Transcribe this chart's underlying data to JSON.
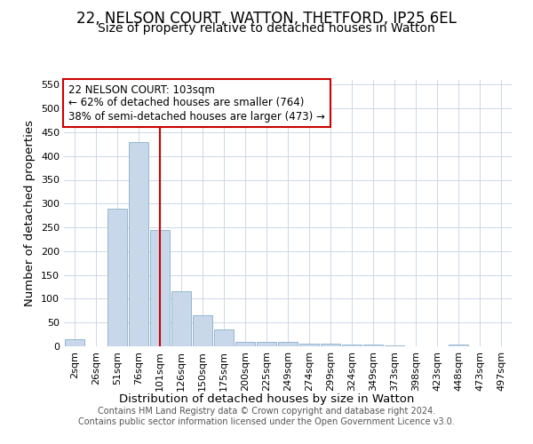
{
  "title": "22, NELSON COURT, WATTON, THETFORD, IP25 6EL",
  "subtitle": "Size of property relative to detached houses in Watton",
  "xlabel": "Distribution of detached houses by size in Watton",
  "ylabel": "Number of detached properties",
  "footer_line1": "Contains HM Land Registry data © Crown copyright and database right 2024.",
  "footer_line2": "Contains public sector information licensed under the Open Government Licence v3.0.",
  "bar_labels": [
    "2sqm",
    "26sqm",
    "51sqm",
    "76sqm",
    "101sqm",
    "126sqm",
    "150sqm",
    "175sqm",
    "200sqm",
    "225sqm",
    "249sqm",
    "274sqm",
    "299sqm",
    "324sqm",
    "349sqm",
    "373sqm",
    "398sqm",
    "423sqm",
    "448sqm",
    "473sqm",
    "497sqm"
  ],
  "bar_values": [
    15,
    0,
    290,
    430,
    245,
    115,
    65,
    35,
    10,
    10,
    10,
    5,
    5,
    3,
    3,
    2,
    0,
    0,
    3,
    0,
    0
  ],
  "bar_color": "#c8d8ea",
  "bar_edge_color": "#8aafc8",
  "vline_pos": 4.5,
  "vline_color": "#cc0000",
  "annotation_text": "22 NELSON COURT: 103sqm\n← 62% of detached houses are smaller (764)\n38% of semi-detached houses are larger (473) →",
  "annotation_box_color": "#ffffff",
  "annotation_box_edge": "#cc0000",
  "ylim": [
    0,
    560
  ],
  "yticks": [
    0,
    50,
    100,
    150,
    200,
    250,
    300,
    350,
    400,
    450,
    500,
    550
  ],
  "title_fontsize": 12,
  "subtitle_fontsize": 10,
  "axis_label_fontsize": 9.5,
  "tick_fontsize": 8,
  "annotation_fontsize": 8.5,
  "bg_color": "#ffffff",
  "grid_color": "#ccd8e8"
}
